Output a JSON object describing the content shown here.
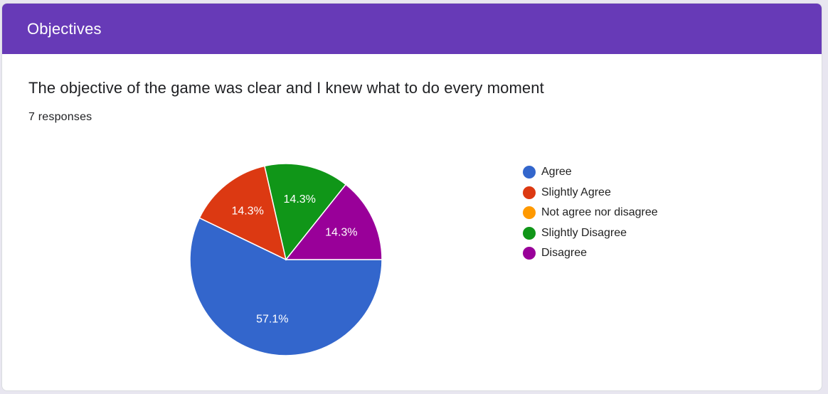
{
  "header": {
    "title": "Objectives"
  },
  "question": {
    "title": "The objective of the game was clear and I knew what to do every moment",
    "responses_label": "7 responses"
  },
  "chart_data": {
    "type": "pie",
    "categories": [
      "Agree",
      "Slightly Agree",
      "Not agree nor disagree",
      "Slightly Disagree",
      "Disagree"
    ],
    "values": [
      4,
      1,
      0,
      1,
      1
    ],
    "percent_labels": [
      "57.1%",
      "14.3%",
      "",
      "14.3%",
      "14.3%"
    ],
    "colors": [
      "#3366cc",
      "#dc3912",
      "#ff9900",
      "#109618",
      "#990099"
    ],
    "legend_position": "right"
  },
  "colors": {
    "header_bg": "#673ab7"
  }
}
